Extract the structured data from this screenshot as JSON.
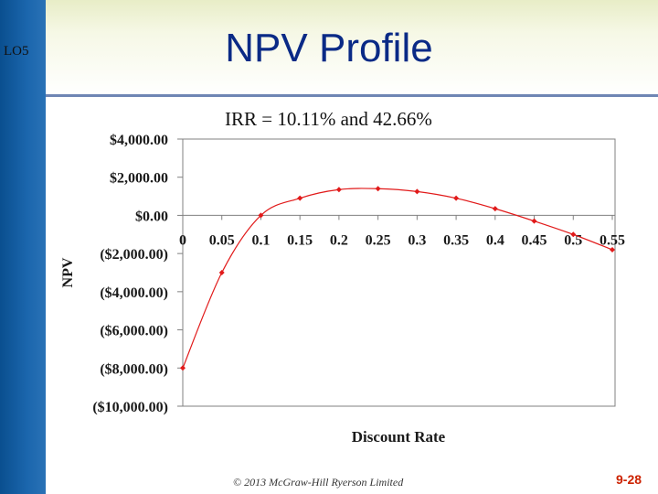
{
  "slide": {
    "lo_label": "LO5",
    "title": "NPV Profile",
    "irr_note": "IRR = 10.11% and 42.66%",
    "copyright": "© 2013 McGraw-Hill Ryerson Limited",
    "page_number": "9-28"
  },
  "colors": {
    "sidebar": "#1b66ad",
    "title_text": "#0a2a86",
    "series": "#e11a1a",
    "page_number": "#cc2200"
  },
  "chart_data": {
    "type": "line",
    "title": "",
    "xlabel": "Discount Rate",
    "ylabel": "NPV",
    "x": [
      0,
      0.05,
      0.1,
      0.15,
      0.2,
      0.25,
      0.3,
      0.35,
      0.4,
      0.45,
      0.5,
      0.55
    ],
    "x_tick_labels": [
      "0",
      "0.05",
      "0.1",
      "0.15",
      "0.2",
      "0.25",
      "0.3",
      "0.35",
      "0.4",
      "0.45",
      "0.5",
      "0.55"
    ],
    "series": [
      {
        "values": [
          -8000,
          -3000,
          0,
          900,
          1350,
          1400,
          1250,
          900,
          350,
          -300,
          -1000,
          -1800
        ]
      }
    ],
    "ylim": [
      -10000,
      4000
    ],
    "y_ticks": [
      4000,
      2000,
      0,
      -2000,
      -4000,
      -6000,
      -8000,
      -10000
    ],
    "y_tick_labels": [
      "$4,000.00",
      "$2,000.00",
      "$0.00",
      "($2,000.00)",
      "($4,000.00)",
      "($6,000.00)",
      "($8,000.00)",
      "($10,000.00)"
    ],
    "marker": "diamond",
    "grid": false,
    "legend": "none"
  }
}
